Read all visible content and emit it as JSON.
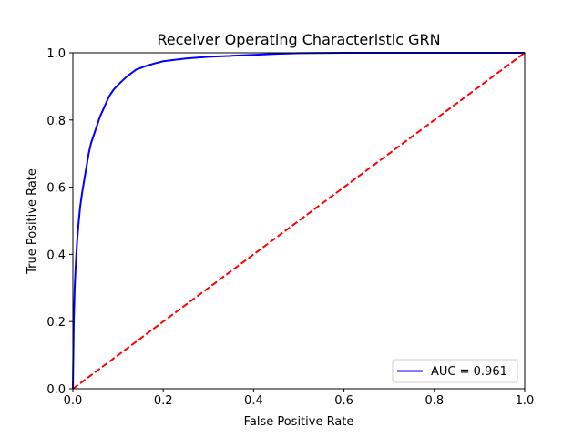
{
  "chart_data": {
    "type": "line",
    "title": "Receiver Operating Characteristic GRN",
    "xlabel": "False Positive Rate",
    "ylabel": "True Positive Rate",
    "xlim": [
      0.0,
      1.0
    ],
    "ylim": [
      0.0,
      1.0
    ],
    "xticks": [
      "0.0",
      "0.2",
      "0.4",
      "0.6",
      "0.8",
      "1.0"
    ],
    "yticks": [
      "0.0",
      "0.2",
      "0.4",
      "0.6",
      "0.8",
      "1.0"
    ],
    "grid": false,
    "legend_position": "lower-right",
    "series": [
      {
        "name": "AUC = 0.961",
        "color": "#0000ff",
        "style": "solid",
        "x": [
          0,
          0.002,
          0.004,
          0.006,
          0.008,
          0.01,
          0.013,
          0.016,
          0.02,
          0.025,
          0.03,
          0.035,
          0.04,
          0.045,
          0.05,
          0.06,
          0.07,
          0.08,
          0.09,
          0.1,
          0.12,
          0.14,
          0.16,
          0.18,
          0.2,
          0.25,
          0.3,
          0.35,
          0.4,
          0.45,
          0.5,
          0.6,
          0.7,
          0.8,
          0.9,
          1.0
        ],
        "y": [
          0,
          0.2,
          0.3,
          0.36,
          0.41,
          0.45,
          0.5,
          0.54,
          0.58,
          0.62,
          0.66,
          0.7,
          0.73,
          0.75,
          0.77,
          0.81,
          0.84,
          0.87,
          0.89,
          0.905,
          0.93,
          0.95,
          0.96,
          0.968,
          0.975,
          0.983,
          0.988,
          0.991,
          0.994,
          0.997,
          0.999,
          1.0,
          1.0,
          1.0,
          1.0,
          1.0
        ]
      },
      {
        "name": "",
        "color": "#ff0000",
        "style": "dashed",
        "x": [
          0,
          1
        ],
        "y": [
          0,
          1
        ]
      }
    ]
  }
}
